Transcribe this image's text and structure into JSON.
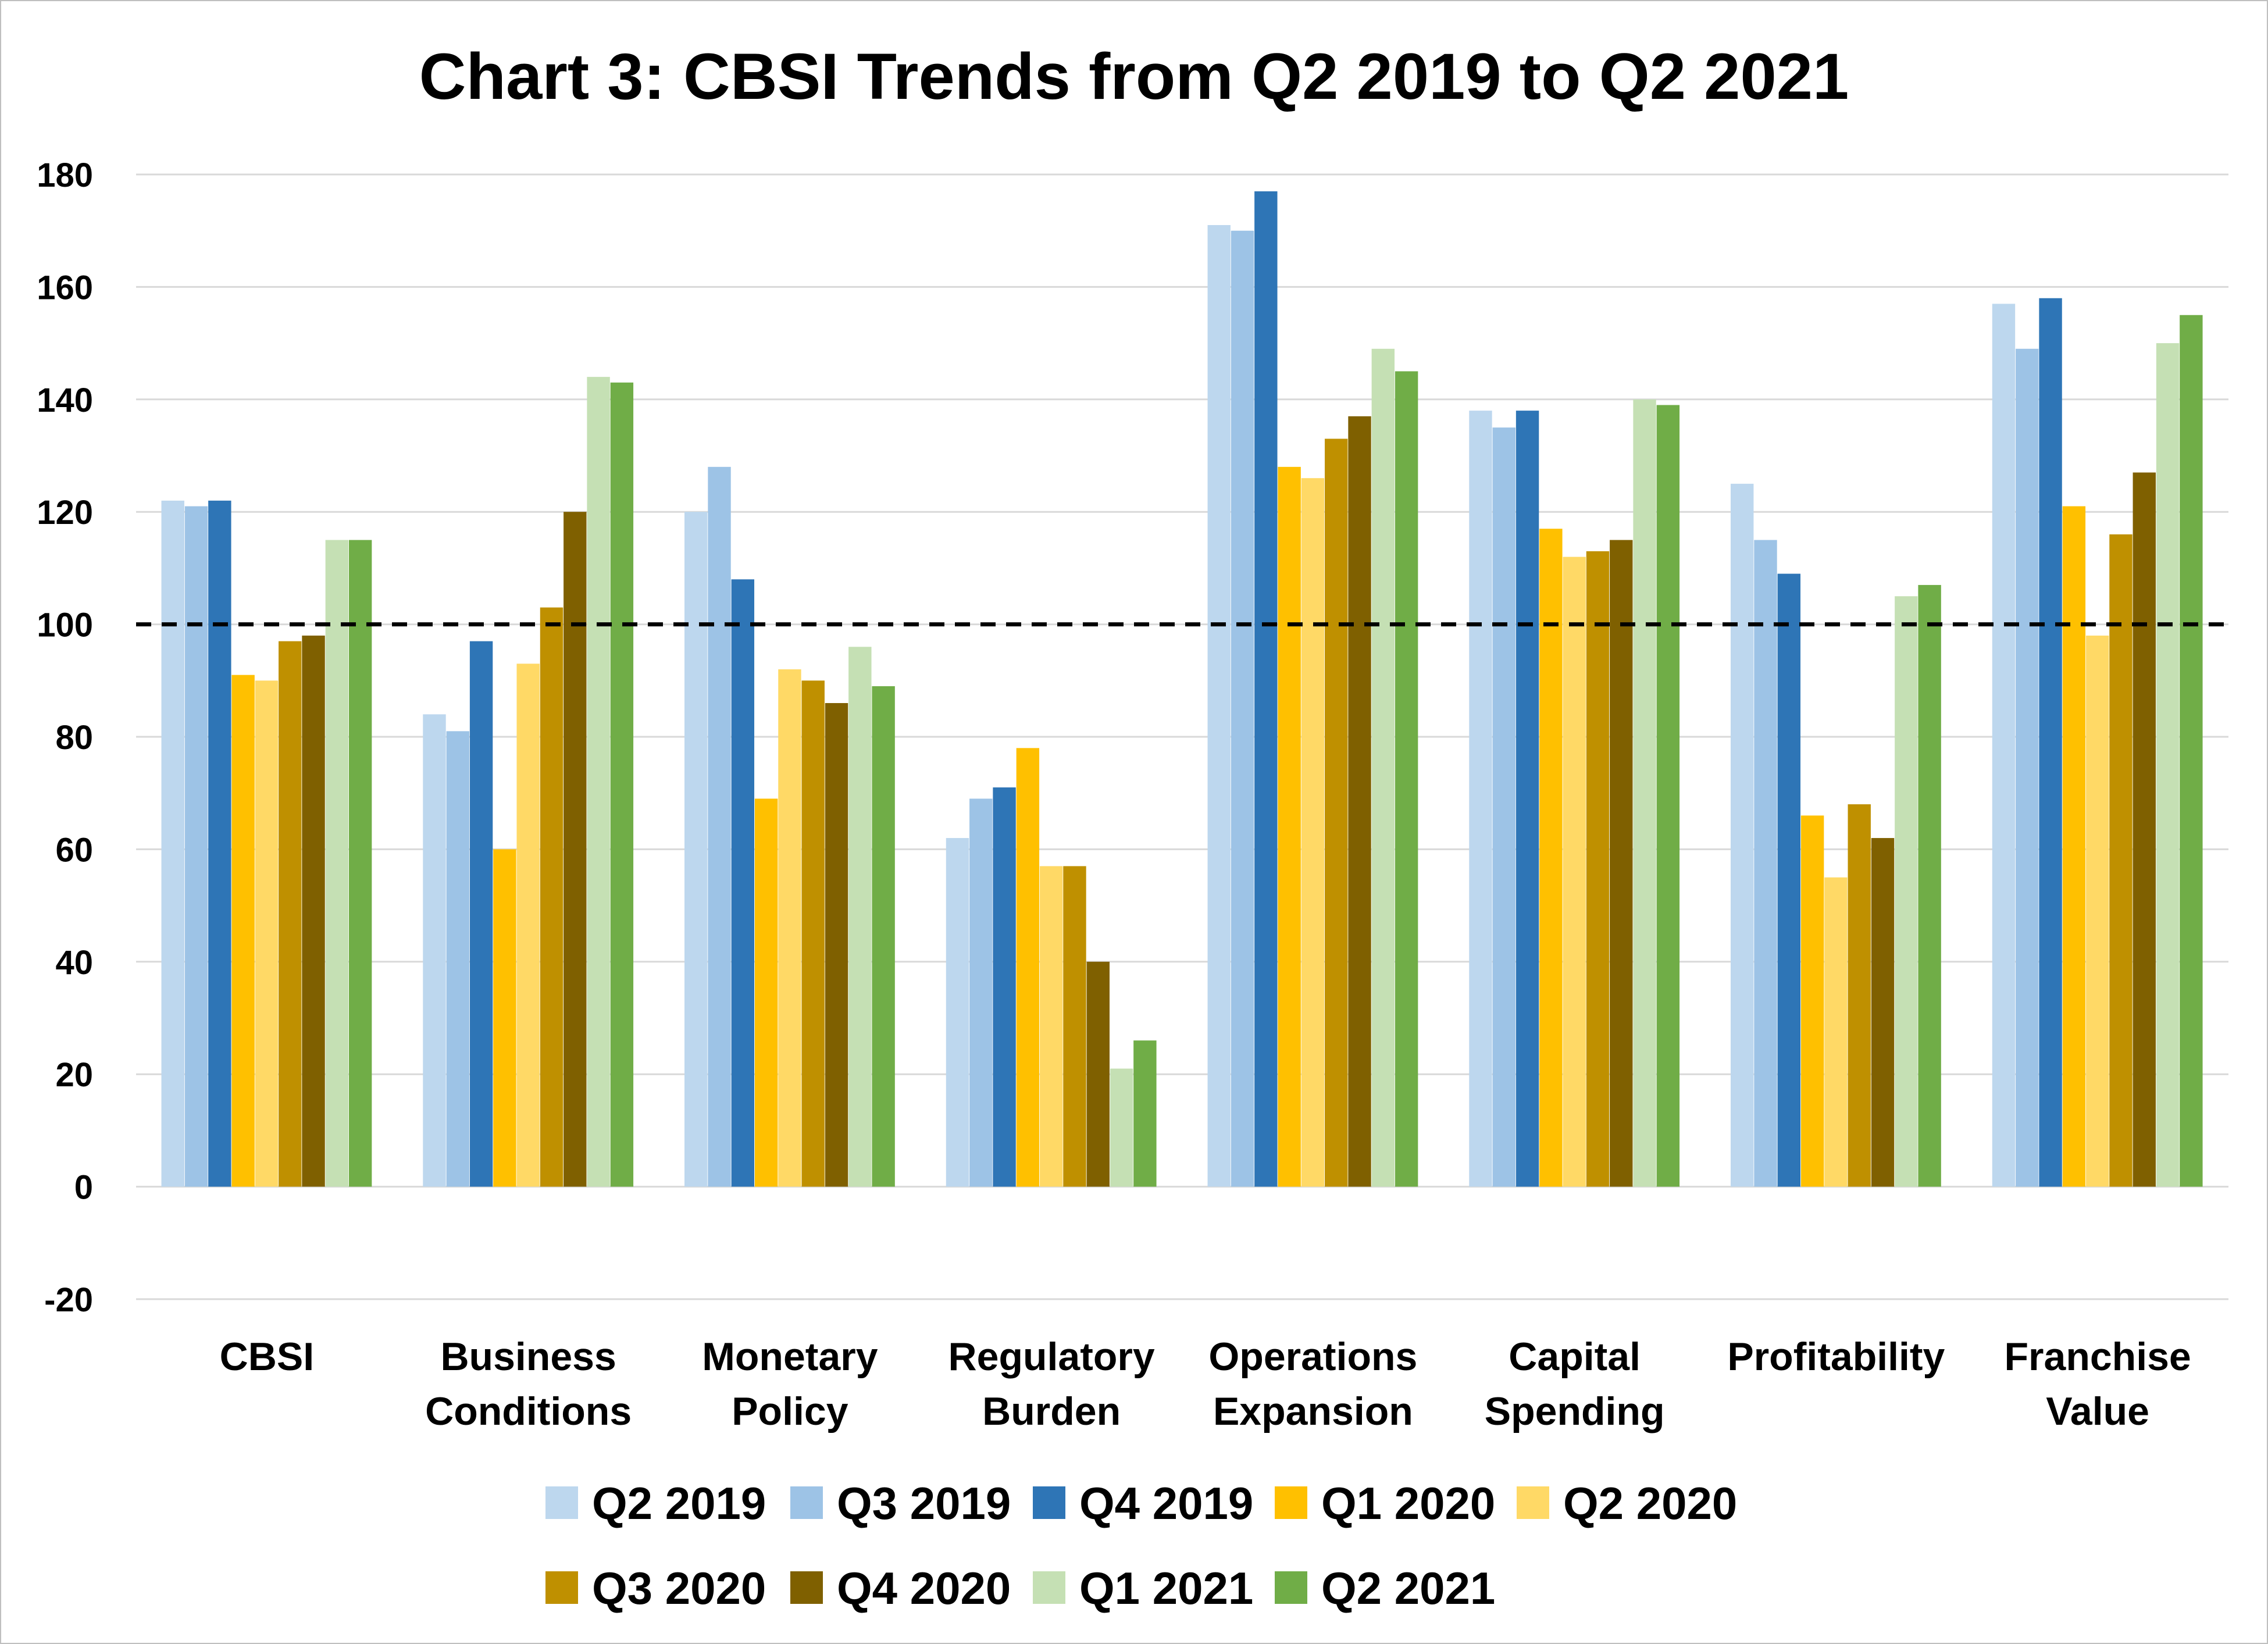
{
  "chart_data": {
    "type": "bar",
    "title": "Chart 3: CBSI Trends from Q2 2019 to Q2 2021",
    "xlabel": "",
    "ylabel": "",
    "ylim": [
      -20,
      180
    ],
    "yticks": [
      180,
      160,
      140,
      120,
      100,
      80,
      60,
      40,
      20,
      0,
      -20
    ],
    "grid": true,
    "reference_line": {
      "value": 100,
      "style": "dashed",
      "color": "#000000"
    },
    "legend_position": "bottom",
    "categories": [
      [
        "CBSI"
      ],
      [
        "Business",
        "Conditions"
      ],
      [
        "Monetary",
        "Policy"
      ],
      [
        "Regulatory",
        "Burden"
      ],
      [
        "Operations",
        "Expansion"
      ],
      [
        "Capital",
        "Spending"
      ],
      [
        "Profitability"
      ],
      [
        "Franchise",
        "Value"
      ]
    ],
    "series": [
      {
        "name": "Q2 2019",
        "color": "#BDD7EE",
        "values": [
          122,
          84,
          120,
          62,
          171,
          138,
          125,
          157
        ]
      },
      {
        "name": "Q3 2019",
        "color": "#9DC3E6",
        "values": [
          121,
          81,
          128,
          69,
          170,
          135,
          115,
          149
        ]
      },
      {
        "name": "Q4 2019",
        "color": "#2E75B6",
        "values": [
          122,
          97,
          108,
          71,
          177,
          138,
          109,
          158
        ]
      },
      {
        "name": "Q1 2020",
        "color": "#FFC000",
        "values": [
          91,
          60,
          69,
          78,
          128,
          117,
          66,
          121
        ]
      },
      {
        "name": "Q2 2020",
        "color": "#FFD966",
        "values": [
          90,
          93,
          92,
          57,
          126,
          112,
          55,
          98
        ]
      },
      {
        "name": "Q3 2020",
        "color": "#BF9000",
        "values": [
          97,
          103,
          90,
          57,
          133,
          113,
          68,
          116
        ]
      },
      {
        "name": "Q4 2020",
        "color": "#7F6000",
        "values": [
          98,
          120,
          86,
          40,
          137,
          115,
          62,
          127
        ]
      },
      {
        "name": "Q1 2021",
        "color": "#C5E0B4",
        "values": [
          115,
          144,
          96,
          21,
          149,
          140,
          105,
          150
        ]
      },
      {
        "name": "Q2 2021",
        "color": "#70AD47",
        "values": [
          115,
          143,
          89,
          26,
          145,
          139,
          107,
          155
        ]
      }
    ]
  }
}
